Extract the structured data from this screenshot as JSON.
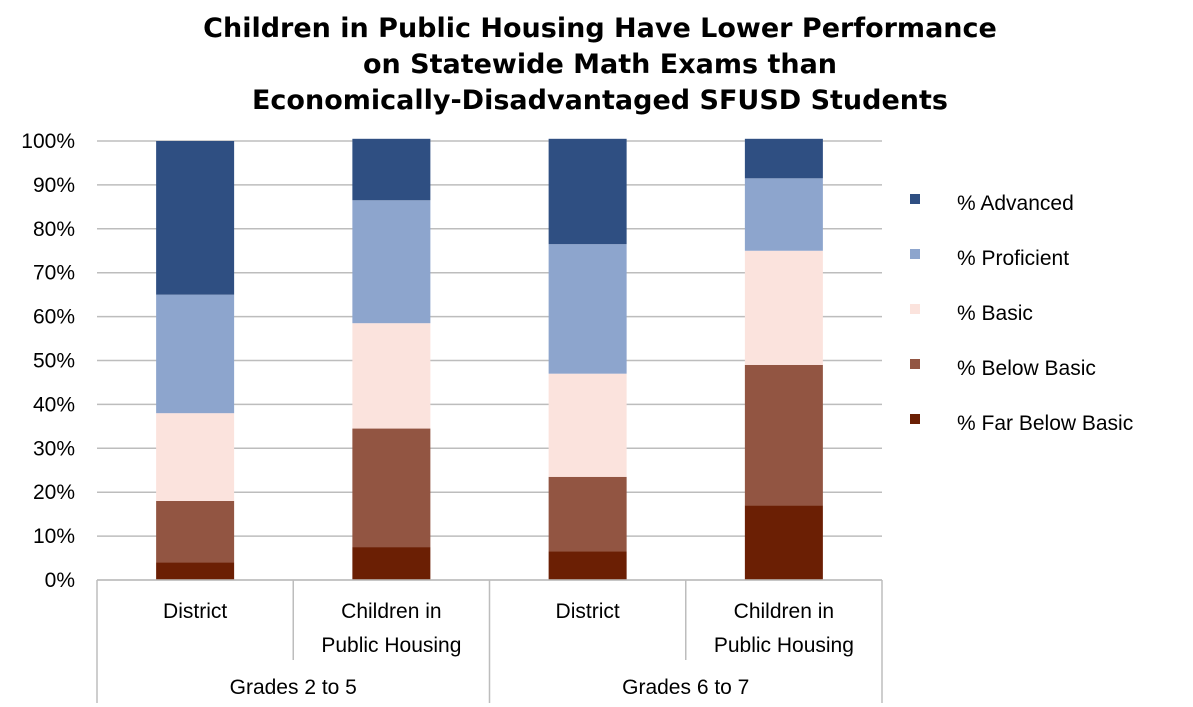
{
  "chart_data": {
    "type": "bar",
    "stacked": true,
    "title": [
      "Children in Public Housing Have Lower Performance",
      "on Statewide Math Exams than",
      "Economically-Disadvantaged SFUSD Students"
    ],
    "xlabel": "",
    "ylabel": "",
    "ylim": [
      0,
      100
    ],
    "y_ticks": [
      "0%",
      "10%",
      "20%",
      "30%",
      "40%",
      "50%",
      "60%",
      "70%",
      "80%",
      "90%",
      "100%"
    ],
    "grid": true,
    "legend_position": "right",
    "groups": [
      {
        "label": "Grades 2 to 5",
        "categories": [
          0,
          1
        ]
      },
      {
        "label": "Grades 6 to  7",
        "categories": [
          2,
          3
        ]
      }
    ],
    "categories": [
      [
        "District"
      ],
      [
        "Children in",
        "Public Housing"
      ],
      [
        "District"
      ],
      [
        "Children in",
        "Public Housing"
      ]
    ],
    "series": [
      {
        "name": "% Far Below Basic",
        "color": "#6b1f04",
        "values": [
          4,
          7.5,
          6.5,
          17
        ]
      },
      {
        "name": "% Below Basic",
        "color": "#925542",
        "values": [
          14,
          27,
          17,
          32
        ]
      },
      {
        "name": "% Basic",
        "color": "#fbe3dd",
        "values": [
          20,
          24,
          23.5,
          26
        ]
      },
      {
        "name": "% Proficient",
        "color": "#8da5cd",
        "values": [
          27,
          28,
          29.5,
          16.5
        ]
      },
      {
        "name": "% Advanced",
        "color": "#2f4f82",
        "values": [
          35,
          14,
          24,
          9
        ]
      }
    ],
    "legend_order": [
      4,
      3,
      2,
      1,
      0
    ]
  }
}
